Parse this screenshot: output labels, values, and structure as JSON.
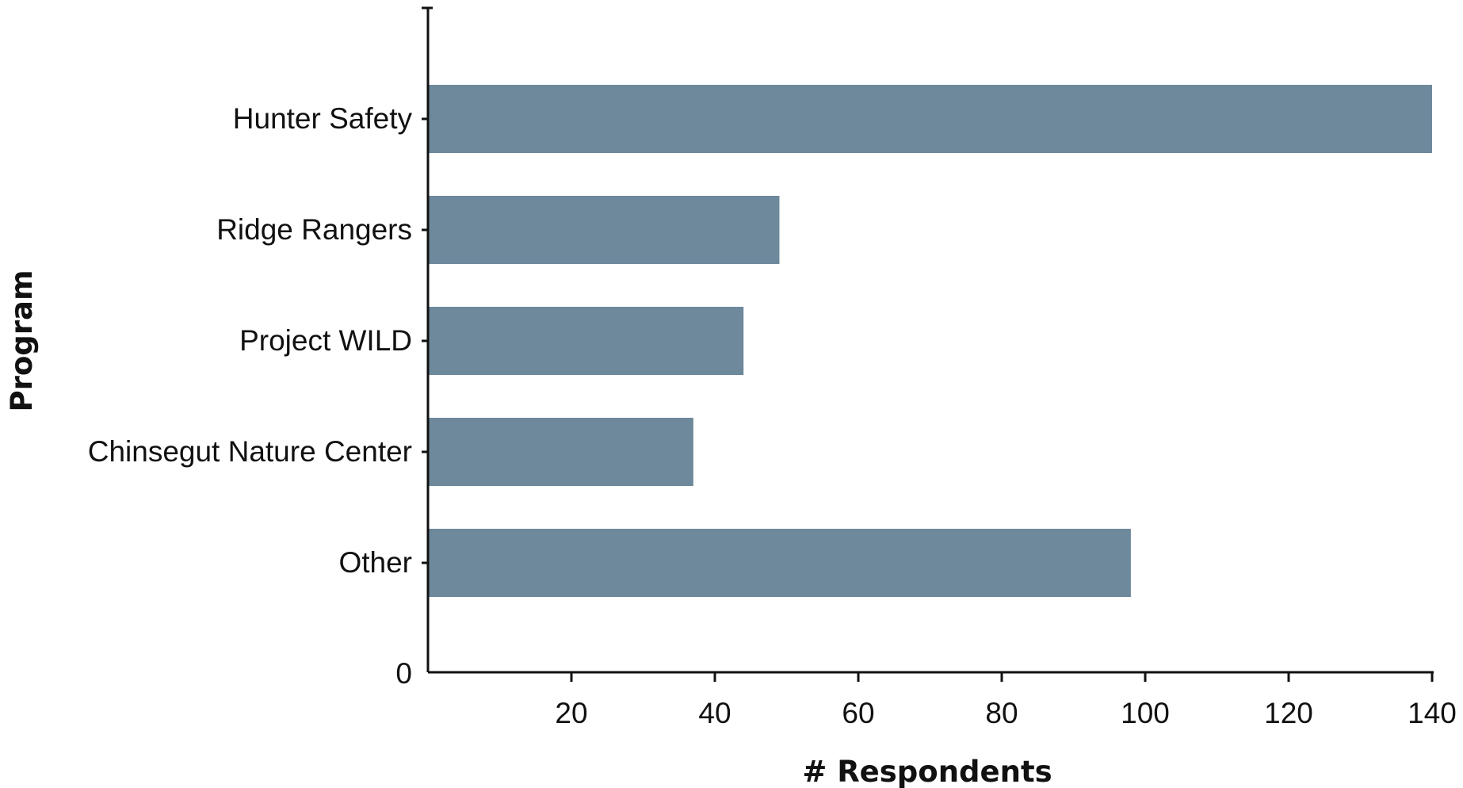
{
  "chart_data": {
    "type": "bar",
    "orientation": "horizontal",
    "categories": [
      "Hunter Safety",
      "Ridge Rangers",
      "Project WILD",
      "Chinsegut Nature Center",
      "Other"
    ],
    "values": [
      140,
      49,
      44,
      37,
      98
    ],
    "xlabel": "# Respondents",
    "ylabel": "Program",
    "xlim": [
      0,
      140
    ],
    "xticks": [
      0,
      20,
      40,
      60,
      80,
      100,
      120,
      140
    ],
    "grid": false,
    "legend": "none",
    "bar_color": "#6e889c"
  }
}
